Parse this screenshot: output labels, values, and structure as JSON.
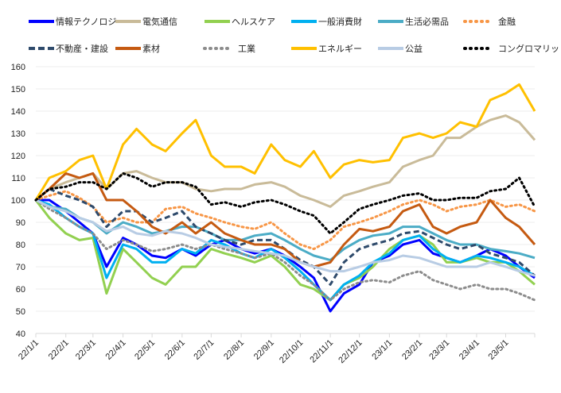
{
  "chart_data": {
    "type": "line",
    "title": "",
    "xlabel": "",
    "ylabel": "",
    "ylim": [
      40,
      160
    ],
    "yticks": [
      40,
      50,
      60,
      70,
      80,
      90,
      100,
      110,
      120,
      130,
      140,
      150,
      160
    ],
    "grid": "horizontal",
    "legend_placement": "top",
    "xtick_labels": [
      "22/1/1",
      "22/2/1",
      "22/3/1",
      "22/4/1",
      "22/5/1",
      "22/6/1",
      "22/7/1",
      "22/8/1",
      "22/9/1",
      "22/10/1",
      "22/11/1",
      "22/12/1",
      "23/1/1",
      "23/2/1",
      "23/3/1",
      "23/4/1",
      "23/5/1"
    ],
    "xtick_dates": [
      "2022-01-01",
      "2022-02-01",
      "2022-03-01",
      "2022-04-01",
      "2022-05-01",
      "2022-06-01",
      "2022-07-01",
      "2022-08-01",
      "2022-09-01",
      "2022-10-01",
      "2022-11-01",
      "2022-12-01",
      "2023-01-01",
      "2023-02-01",
      "2023-03-01",
      "2023-04-01",
      "2023-05-01"
    ],
    "xlim": [
      "2022-01-01",
      "2023-05-31"
    ],
    "x": [
      "2022-01-01",
      "2022-01-15",
      "2022-02-01",
      "2022-02-15",
      "2022-03-01",
      "2022-03-15",
      "2022-04-01",
      "2022-04-15",
      "2022-05-01",
      "2022-05-15",
      "2022-06-01",
      "2022-06-15",
      "2022-07-01",
      "2022-07-15",
      "2022-08-01",
      "2022-08-15",
      "2022-09-01",
      "2022-09-15",
      "2022-10-01",
      "2022-10-15",
      "2022-11-01",
      "2022-11-15",
      "2022-12-01",
      "2022-12-15",
      "2023-01-01",
      "2023-01-15",
      "2023-02-01",
      "2023-02-15",
      "2023-03-01",
      "2023-03-15",
      "2023-04-01",
      "2023-04-15",
      "2023-05-01",
      "2023-05-15",
      "2023-05-31"
    ],
    "series": [
      {
        "name": "情報テクノロジー",
        "color": "#0000ff",
        "style": "solid",
        "values": [
          100,
          100,
          95,
          90,
          85,
          70,
          83,
          80,
          75,
          74,
          78,
          75,
          80,
          82,
          78,
          76,
          78,
          75,
          70,
          65,
          50,
          58,
          62,
          72,
          75,
          80,
          82,
          76,
          74,
          72,
          75,
          78,
          75,
          70,
          65
        ]
      },
      {
        "name": "電気通信",
        "color": "#c9bb99",
        "style": "solid",
        "values": [
          100,
          105,
          108,
          110,
          112,
          105,
          112,
          113,
          110,
          108,
          108,
          105,
          104,
          105,
          105,
          107,
          108,
          106,
          102,
          100,
          97,
          102,
          104,
          106,
          108,
          115,
          118,
          120,
          128,
          128,
          133,
          136,
          138,
          135,
          127
        ]
      },
      {
        "name": "ヘルスケア",
        "color": "#92d050",
        "style": "solid",
        "values": [
          100,
          92,
          85,
          82,
          83,
          58,
          78,
          72,
          65,
          62,
          70,
          70,
          78,
          76,
          74,
          72,
          75,
          70,
          62,
          60,
          55,
          62,
          65,
          70,
          78,
          82,
          84,
          80,
          72,
          72,
          74,
          72,
          72,
          68,
          62
        ]
      },
      {
        "name": "一般消費財",
        "color": "#00b0f0",
        "style": "solid",
        "values": [
          100,
          98,
          92,
          88,
          85,
          65,
          80,
          78,
          72,
          72,
          78,
          76,
          82,
          80,
          76,
          74,
          78,
          74,
          68,
          62,
          55,
          62,
          66,
          72,
          76,
          82,
          84,
          78,
          74,
          72,
          75,
          74,
          72,
          70,
          66
        ]
      },
      {
        "name": "生活必需品",
        "color": "#4bacc6",
        "style": "solid",
        "values": [
          100,
          97,
          96,
          92,
          90,
          85,
          90,
          88,
          85,
          86,
          88,
          88,
          85,
          82,
          82,
          84,
          85,
          82,
          78,
          75,
          73,
          78,
          82,
          84,
          85,
          88,
          88,
          85,
          82,
          80,
          80,
          78,
          77,
          76,
          74
        ]
      },
      {
        "name": "金融",
        "color": "#f79646",
        "style": "dotted",
        "values": [
          100,
          102,
          104,
          101,
          97,
          90,
          92,
          90,
          90,
          96,
          97,
          94,
          92,
          90,
          88,
          87,
          90,
          85,
          80,
          78,
          82,
          88,
          90,
          92,
          95,
          98,
          100,
          98,
          95,
          97,
          98,
          100,
          97,
          98,
          95
        ]
      },
      {
        "name": "不動産・建設",
        "color": "#2e4a6b",
        "style": "dashed",
        "values": [
          100,
          105,
          102,
          100,
          97,
          88,
          95,
          95,
          90,
          92,
          95,
          88,
          85,
          82,
          80,
          82,
          82,
          78,
          73,
          70,
          62,
          72,
          78,
          80,
          82,
          85,
          86,
          83,
          80,
          78,
          80,
          76,
          74,
          72,
          66
        ]
      },
      {
        "name": "素材",
        "color": "#c55a11",
        "style": "solid",
        "values": [
          100,
          105,
          112,
          110,
          112,
          100,
          100,
          95,
          88,
          85,
          90,
          85,
          90,
          85,
          82,
          80,
          80,
          78,
          72,
          70,
          72,
          80,
          87,
          86,
          88,
          95,
          98,
          88,
          85,
          88,
          90,
          100,
          92,
          88,
          80
        ]
      },
      {
        "name": "工業",
        "color": "#8c8c8c",
        "style": "dotted",
        "values": [
          100,
          96,
          92,
          88,
          85,
          78,
          82,
          80,
          77,
          78,
          80,
          78,
          80,
          78,
          76,
          74,
          76,
          72,
          66,
          62,
          55,
          60,
          63,
          64,
          63,
          66,
          68,
          64,
          62,
          60,
          62,
          60,
          60,
          58,
          55
        ]
      },
      {
        "name": "エネルギー",
        "color": "#ffc000",
        "style": "solid",
        "values": [
          100,
          110,
          113,
          118,
          120,
          105,
          125,
          132,
          125,
          122,
          130,
          136,
          120,
          115,
          115,
          112,
          125,
          118,
          115,
          122,
          110,
          116,
          118,
          117,
          118,
          128,
          130,
          128,
          130,
          135,
          133,
          145,
          148,
          152,
          140
        ]
      },
      {
        "name": "公益",
        "color": "#b8cce4",
        "style": "solid",
        "values": [
          100,
          97,
          95,
          92,
          90,
          86,
          88,
          85,
          84,
          86,
          85,
          83,
          80,
          79,
          78,
          77,
          76,
          75,
          72,
          70,
          68,
          68,
          70,
          72,
          73,
          75,
          74,
          72,
          70,
          70,
          70,
          72,
          70,
          68,
          66
        ]
      },
      {
        "name": "コングロマリット",
        "color": "#000000",
        "style": "dotted",
        "values": [
          100,
          105,
          106,
          108,
          108,
          105,
          112,
          110,
          106,
          108,
          108,
          106,
          98,
          99,
          97,
          99,
          100,
          98,
          95,
          93,
          85,
          90,
          96,
          98,
          100,
          102,
          103,
          100,
          100,
          101,
          101,
          104,
          105,
          110,
          97
        ]
      }
    ]
  }
}
